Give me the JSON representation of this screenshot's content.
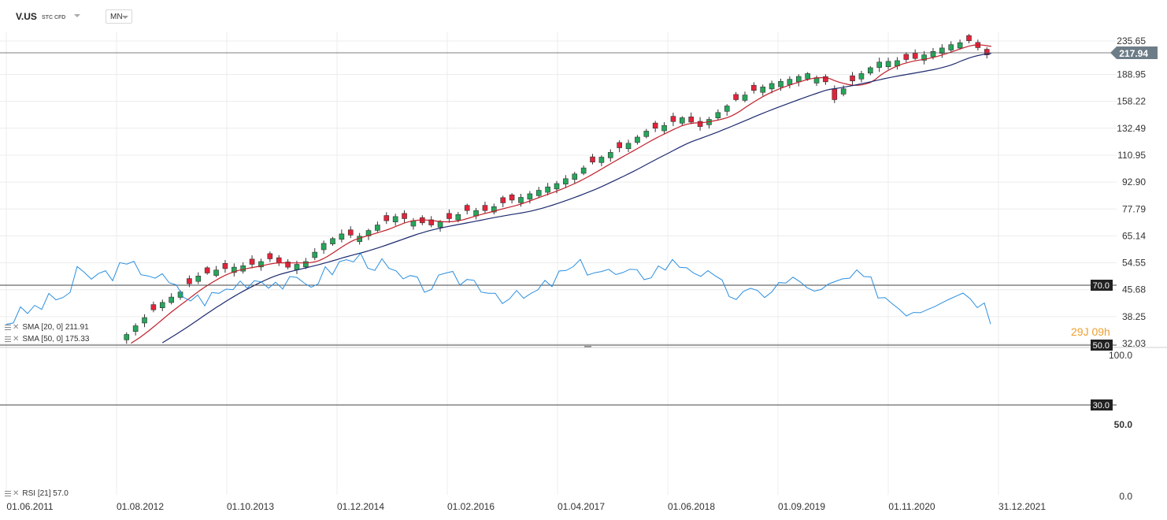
{
  "header": {
    "symbol": "V.US",
    "type": "STC CFD",
    "timeframe": "MN"
  },
  "price_label": "217.94",
  "timer": {
    "value": "29J 09h"
  },
  "indicators": {
    "sma20": "SMA [20, 0] 211.91",
    "sma50": "SMA [50, 0] 175.33",
    "rsi": "RSI [21] 57.0"
  },
  "colors": {
    "up": "#26a65b",
    "down": "#e4233a",
    "sma20": "#c0202a",
    "sma50": "#1c2a6e",
    "rsi": "#2a8fe0",
    "grid": "#ececec",
    "price_tag": "#6d7d88"
  },
  "chart_data": [
    {
      "type": "candlestick",
      "title": "V.US",
      "y_ticks": [
        "235.65",
        "188.95",
        "158.22",
        "132.49",
        "110.95",
        "92.90",
        "77.79",
        "65.14",
        "54.55",
        "45.68",
        "38.25",
        "32.03"
      ],
      "y_tick_values": [
        235.65,
        188.95,
        158.22,
        132.49,
        110.95,
        92.9,
        77.79,
        65.14,
        54.55,
        45.68,
        38.25,
        32.03
      ],
      "y_scale": "log",
      "x_ticks": [
        "01.06.2011",
        "01.08.2012",
        "01.10.2013",
        "01.12.2014",
        "01.02.2016",
        "01.04.2017",
        "01.06.2018",
        "01.09.2019",
        "01.11.2020",
        "31.12.2021"
      ],
      "last_price": 217.94,
      "grid": true,
      "series": [
        {
          "name": "SMA [20, 0]",
          "last": 211.91
        },
        {
          "name": "SMA [50, 0]",
          "last": 175.33
        }
      ]
    },
    {
      "type": "line",
      "title": "RSI [21]",
      "last": 57.0,
      "levels": [
        70.0,
        50.0,
        30.0
      ],
      "level_labels": [
        "70.0",
        "50.0",
        "30.0"
      ],
      "y_ticks": [
        "100.0",
        "50.0",
        "0.0"
      ],
      "ylim": [
        0,
        100
      ]
    }
  ]
}
